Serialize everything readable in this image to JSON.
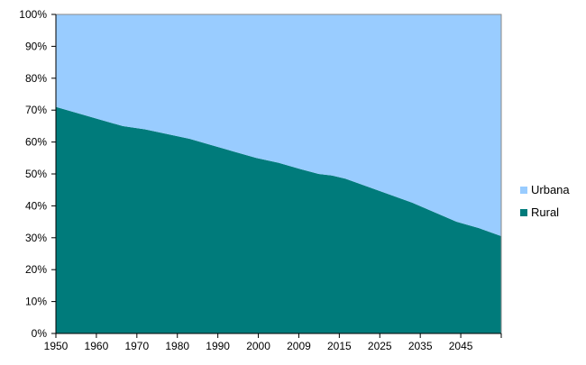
{
  "chart_data": {
    "type": "area",
    "stacked": true,
    "percent": true,
    "x": [
      1950,
      1955,
      1960,
      1965,
      1970,
      1975,
      1980,
      1985,
      1990,
      1995,
      2000,
      2005,
      2009,
      2012,
      2015,
      2020,
      2025,
      2030,
      2035,
      2040,
      2045,
      2050
    ],
    "x_tick_labels": [
      "1950",
      "1960",
      "1970",
      "1980",
      "1990",
      "2000",
      "2009",
      "2015",
      "2025",
      "2035",
      "2045"
    ],
    "series": [
      {
        "name": "Rural",
        "color": "#007B7B",
        "values": [
          71,
          69,
          67,
          65,
          64,
          62.5,
          61,
          59,
          57,
          55,
          53.5,
          51.5,
          50,
          49.5,
          48.5,
          46,
          43.5,
          41,
          38,
          35,
          33,
          30.5
        ]
      },
      {
        "name": "Urbana",
        "color": "#99CCFF",
        "values": [
          29,
          31,
          33,
          35,
          36,
          37.5,
          39,
          41,
          43,
          45,
          46.5,
          48.5,
          50,
          50.5,
          51.5,
          54,
          56.5,
          59,
          62,
          65,
          67,
          69.5
        ]
      }
    ],
    "y_tick_labels": [
      "0%",
      "10%",
      "20%",
      "30%",
      "40%",
      "50%",
      "60%",
      "70%",
      "80%",
      "90%",
      "100%"
    ],
    "ylim": [
      0,
      100
    ],
    "title": "",
    "xlabel": "",
    "ylabel": "",
    "grid": false,
    "legend_position": "right",
    "legend": [
      "Urbana",
      "Rural"
    ]
  }
}
